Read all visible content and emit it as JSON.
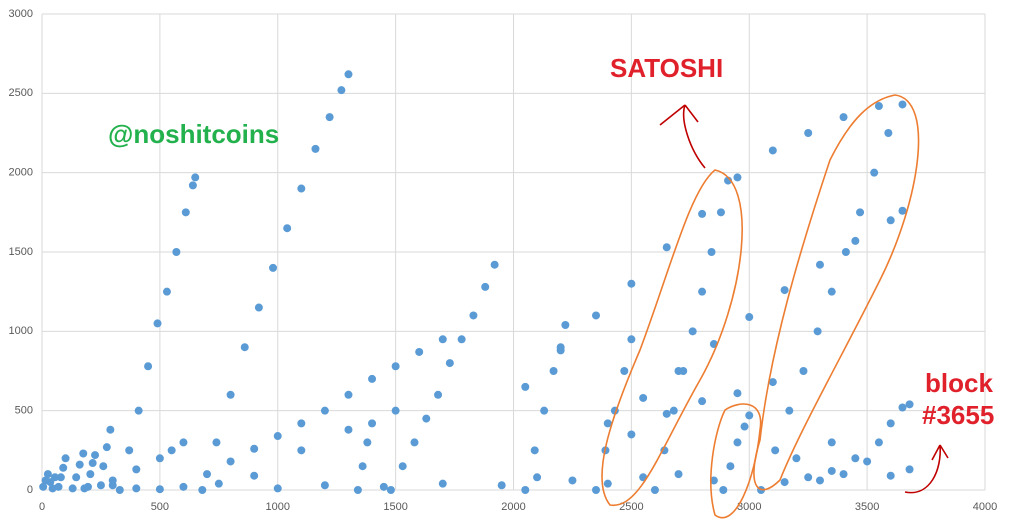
{
  "chart_data": {
    "type": "scatter",
    "color": "#5b9bd5",
    "grid": true,
    "xlim": [
      0,
      4000
    ],
    "xticks": [
      0,
      500,
      1000,
      1500,
      2000,
      2500,
      3000,
      3500,
      4000
    ],
    "ylim": [
      0,
      3000
    ],
    "yticks": [
      0,
      500,
      1000,
      1500,
      2000,
      2500,
      3000
    ],
    "annotations": [
      "@noshitcoins",
      "SATOSHI",
      "block",
      "#3655"
    ],
    "x": [
      5,
      15,
      25,
      35,
      45,
      55,
      70,
      80,
      90,
      100,
      130,
      145,
      160,
      175,
      195,
      205,
      215,
      225,
      250,
      260,
      275,
      290,
      330,
      370,
      410,
      450,
      490,
      530,
      570,
      610,
      640,
      650,
      680,
      740,
      800,
      860,
      920,
      980,
      1040,
      1100,
      1160,
      1220,
      1270,
      1300,
      1340,
      1360,
      1380,
      1400,
      1480,
      1530,
      1580,
      1630,
      1680,
      1730,
      1780,
      1830,
      1880,
      1920,
      2050,
      2090,
      2130,
      2170,
      2200,
      2220,
      2350,
      2390,
      2430,
      2470,
      2500,
      2600,
      2640,
      2680,
      2720,
      2760,
      2800,
      2840,
      2880,
      2910,
      3050,
      3110,
      3170,
      3230,
      3290,
      3350,
      3410,
      3470,
      3530,
      3590,
      3650,
      2890,
      2920,
      2950,
      2980,
      3000,
      700,
      800,
      900,
      1000,
      1100,
      1200,
      1300,
      1400,
      1500,
      1600,
      1700,
      900,
      1100,
      1300,
      1500,
      2050,
      2200,
      2350,
      2500,
      2650,
      2800,
      2950,
      3100,
      3250,
      3400,
      3550,
      2400,
      2550,
      2700,
      2850,
      3000,
      3150,
      3300,
      3450,
      3600,
      3650,
      2500,
      2650,
      2800,
      2950,
      3100,
      300,
      400,
      500,
      550,
      600,
      180,
      300,
      400,
      500,
      600,
      750,
      1000,
      1200,
      1450,
      1700,
      1950,
      2100,
      2250,
      2400,
      2550,
      2700,
      2850,
      3150,
      3250,
      3350,
      3450,
      3550,
      3600,
      3650,
      3500,
      3400,
      3300,
      3600,
      3680,
      3680,
      3200,
      3350
    ],
    "values": [
      20,
      60,
      100,
      50,
      10,
      80,
      20,
      80,
      140,
      200,
      10,
      80,
      160,
      230,
      20,
      100,
      170,
      220,
      30,
      150,
      270,
      380,
      0,
      250,
      500,
      780,
      1050,
      1250,
      1500,
      1750,
      1920,
      1970,
      0,
      300,
      600,
      900,
      1150,
      1400,
      1650,
      1900,
      2150,
      2350,
      2520,
      2620,
      0,
      150,
      300,
      420,
      0,
      150,
      300,
      450,
      600,
      800,
      950,
      1100,
      1280,
      1420,
      0,
      250,
      500,
      750,
      900,
      1040,
      0,
      250,
      500,
      750,
      950,
      0,
      250,
      500,
      750,
      1000,
      1250,
      1500,
      1750,
      1950,
      0,
      250,
      500,
      750,
      1000,
      1250,
      1500,
      1750,
      2000,
      2250,
      2430,
      0,
      150,
      300,
      400,
      470,
      100,
      180,
      260,
      340,
      420,
      500,
      600,
      700,
      780,
      870,
      950,
      90,
      250,
      380,
      500,
      650,
      880,
      1100,
      1300,
      1530,
      1740,
      1970,
      2140,
      2250,
      2350,
      2420,
      420,
      580,
      750,
      920,
      1090,
      1260,
      1420,
      1570,
      1700,
      1760,
      350,
      480,
      560,
      610,
      680,
      60,
      130,
      200,
      250,
      300,
      10,
      30,
      10,
      5,
      20,
      40,
      10,
      30,
      20,
      40,
      30,
      80,
      60,
      40,
      80,
      100,
      60,
      50,
      80,
      120,
      200,
      300,
      420,
      520,
      180,
      100,
      60,
      90,
      130,
      540,
      200,
      300
    ]
  }
}
